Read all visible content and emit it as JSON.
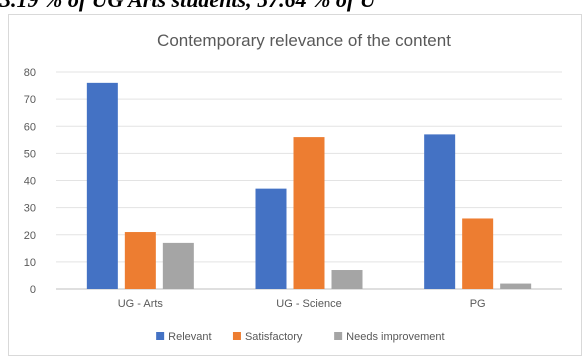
{
  "page_header_text": "3.19 % of UG Arts students, 57.64 % of U",
  "chart_data": {
    "type": "bar",
    "title": "Contemporary relevance of the content",
    "categories": [
      "UG - Arts",
      "UG - Science",
      "PG"
    ],
    "series": [
      {
        "name": "Relevant",
        "color": "#4472C4",
        "values": [
          76,
          37,
          57
        ]
      },
      {
        "name": "Satisfactory",
        "color": "#ED7D31",
        "values": [
          21,
          56,
          26
        ]
      },
      {
        "name": "Needs improvement",
        "color": "#A5A5A5",
        "values": [
          17,
          7,
          2
        ]
      }
    ],
    "ylim": [
      0,
      80
    ],
    "yticks": [
      0,
      10,
      20,
      30,
      40,
      50,
      60,
      70,
      80
    ],
    "grid": true,
    "legend_position": "bottom"
  }
}
